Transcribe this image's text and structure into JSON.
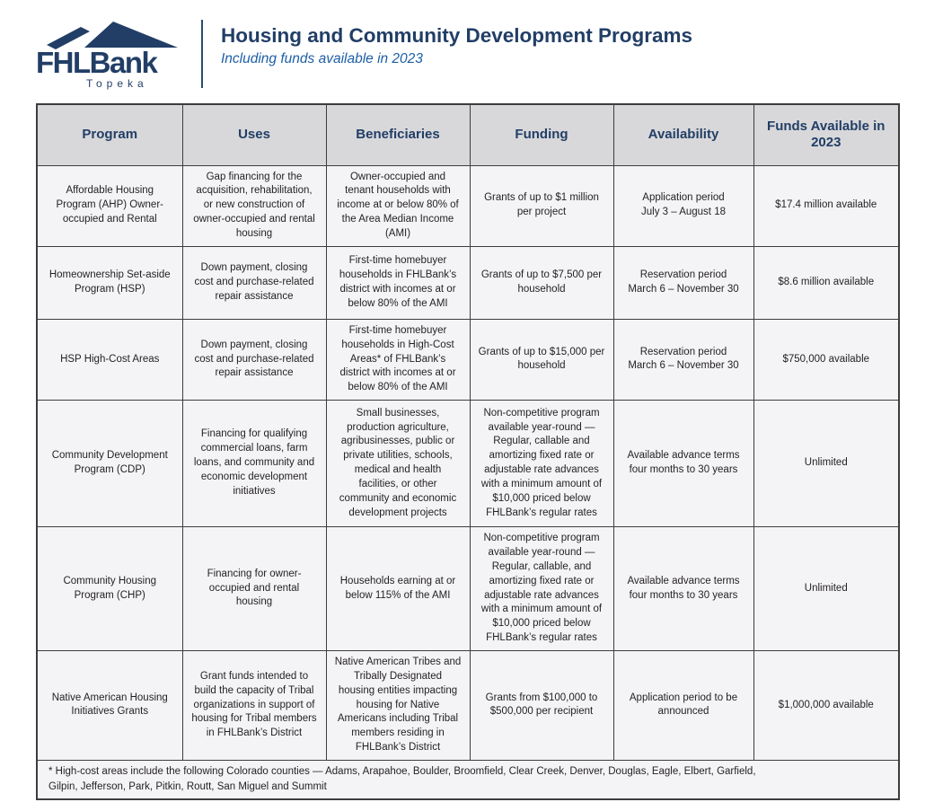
{
  "brand": {
    "name": "FHLBank",
    "city": "Topeka",
    "colors": {
      "navy": "#223e66",
      "blue": "#1d5fa6",
      "header_bg": "#d8d8da",
      "cell_bg": "#f4f4f6",
      "border": "#3d3d3f"
    }
  },
  "header": {
    "title": "Housing and Community Development Programs",
    "subtitle": "Including funds available in 2023"
  },
  "table": {
    "columns": [
      "Program",
      "Uses",
      "Beneficiaries",
      "Funding",
      "Availability",
      "Funds Available in 2023"
    ],
    "rows": [
      {
        "program": "Affordable Housing Program (AHP) Owner-occupied and Rental",
        "uses": "Gap financing for the acquisition, rehabilitation, or new construction of owner-occupied and rental housing",
        "beneficiaries": "Owner-occupied and tenant households with income at or below 80% of the Area Median Income (AMI)",
        "funding": "Grants of up to $1 million per project",
        "availability": "Application period\nJuly 3 – August 18",
        "funds": "$17.4 million available"
      },
      {
        "program": "Homeownership Set-aside Program (HSP)",
        "uses": "Down payment, closing cost and purchase-related repair assistance",
        "beneficiaries": "First-time homebuyer households in FHLBank’s district with incomes at or below 80% of the AMI",
        "funding": "Grants of up to $7,500 per household",
        "availability": "Reservation period\nMarch 6 – November 30",
        "funds": "$8.6 million available"
      },
      {
        "program": "HSP High-Cost Areas",
        "uses": "Down payment, closing cost and purchase-related repair assistance",
        "beneficiaries": "First-time homebuyer households in High-Cost Areas* of FHLBank’s district with incomes at or below 80% of the AMI",
        "funding": "Grants of up to $15,000 per household",
        "availability": "Reservation period\nMarch 6 – November 30",
        "funds": "$750,000 available"
      },
      {
        "program": "Community Development Program (CDP)",
        "uses": "Financing for qualifying commercial loans, farm loans, and community and economic development initiatives",
        "beneficiaries": "Small businesses, production agriculture, agribusinesses, public or private utilities, schools, medical and health facilities, or other community and economic development projects",
        "funding": "Non-competitive program available year-round — Regular, callable and amortizing fixed rate or adjustable rate advances with a minimum amount of $10,000 priced below FHLBank’s regular rates",
        "availability": "Available advance terms four months to 30 years",
        "funds": "Unlimited"
      },
      {
        "program": "Community Housing Program (CHP)",
        "uses": "Financing for owner-occupied and rental housing",
        "beneficiaries": "Households earning at or below 115% of the AMI",
        "funding": "Non-competitive program available year-round — Regular, callable, and amortizing fixed rate or adjustable rate advances with a minimum amount of $10,000 priced below FHLBank’s regular rates",
        "availability": "Available advance terms four months to 30 years",
        "funds": "Unlimited"
      },
      {
        "program": "Native American Housing Initiatives Grants",
        "uses": "Grant funds intended to build the capacity of Tribal organizations in support of housing for Tribal members in FHLBank’s District",
        "beneficiaries": "Native American Tribes and Tribally Designated housing entities impacting housing for Native Americans including Tribal members residing in FHLBank’s District",
        "funding": "Grants from $100,000 to $500,000 per recipient",
        "availability": "Application period to be announced",
        "funds": "$1,000,000 available"
      }
    ],
    "footnote": "* High-cost areas include the following Colorado counties — Adams, Arapahoe, Boulder, Broomfield, Clear Creek, Denver, Douglas, Eagle, Elbert, Garfield,\nGilpin, Jefferson, Park, Pitkin, Routt, San Miguel and Summit"
  }
}
